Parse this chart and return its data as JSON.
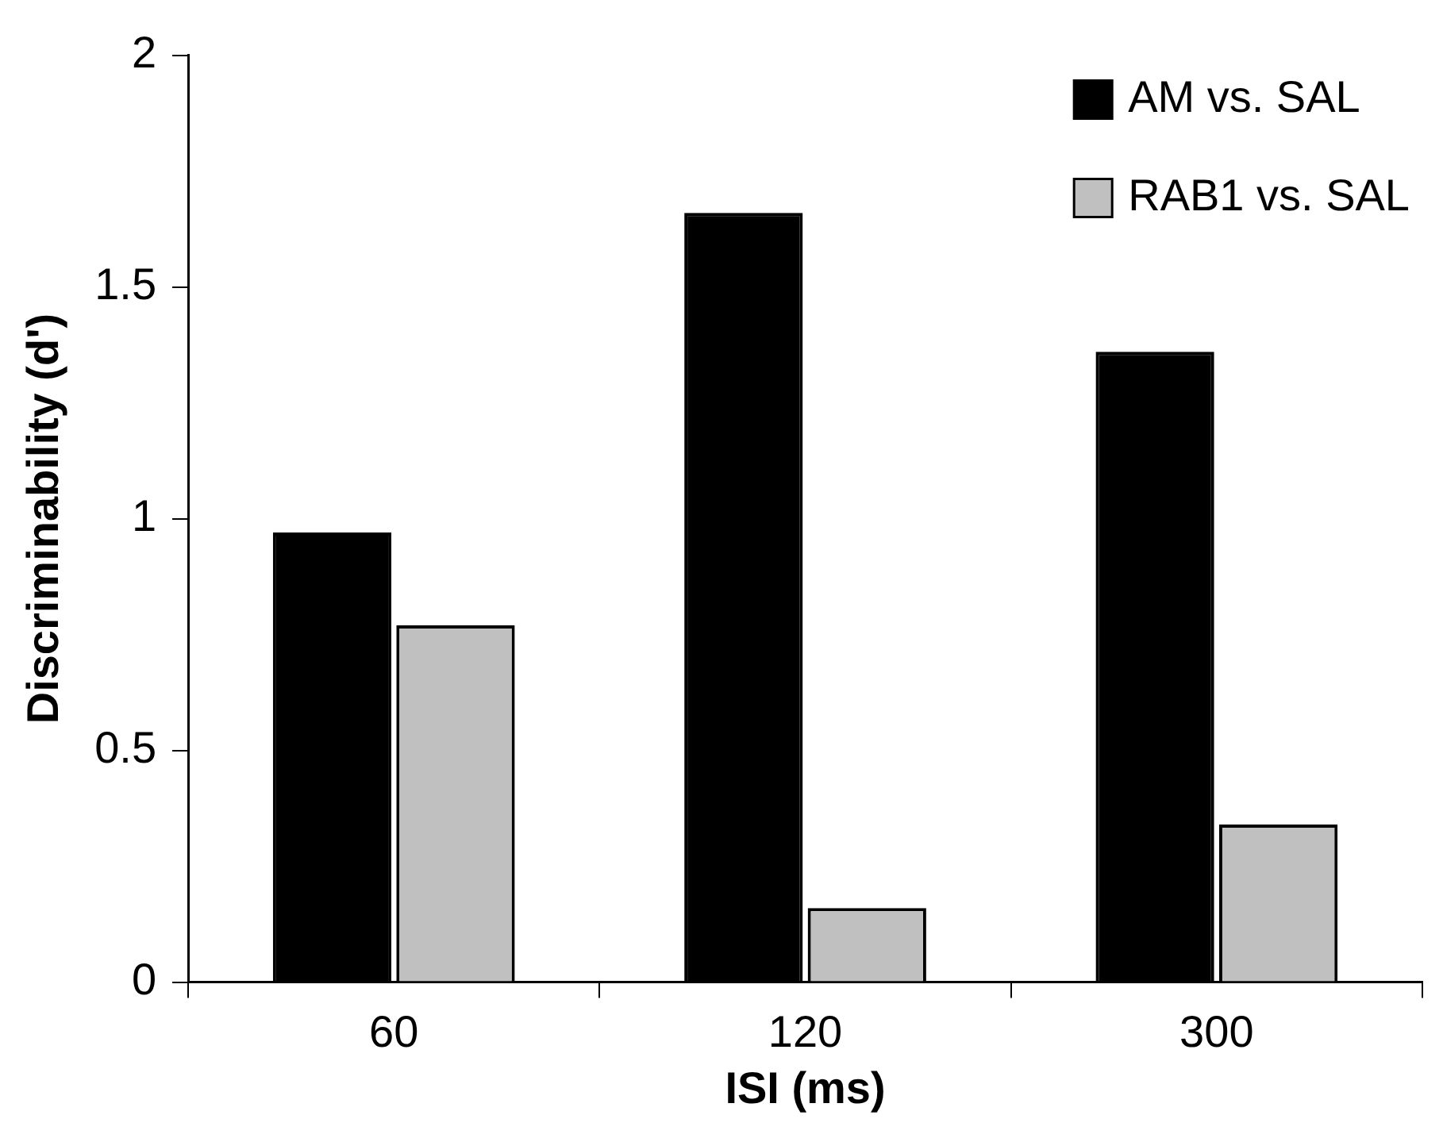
{
  "chart_data": {
    "type": "bar",
    "xlabel": "ISI (ms)",
    "ylabel": "Discriminability (d')",
    "categories": [
      "60",
      "120",
      "300"
    ],
    "series": [
      {
        "name": "AM vs. SAL",
        "color": "#000000",
        "values": [
          0.97,
          1.66,
          1.36
        ]
      },
      {
        "name": "RAB1 vs. SAL",
        "color": "#c0c0c0",
        "values": [
          0.77,
          0.16,
          0.34
        ]
      }
    ],
    "ylim": [
      0,
      2
    ],
    "yticks": [
      0,
      0.5,
      1,
      1.5,
      2
    ],
    "grid": false,
    "legend": "top right"
  }
}
